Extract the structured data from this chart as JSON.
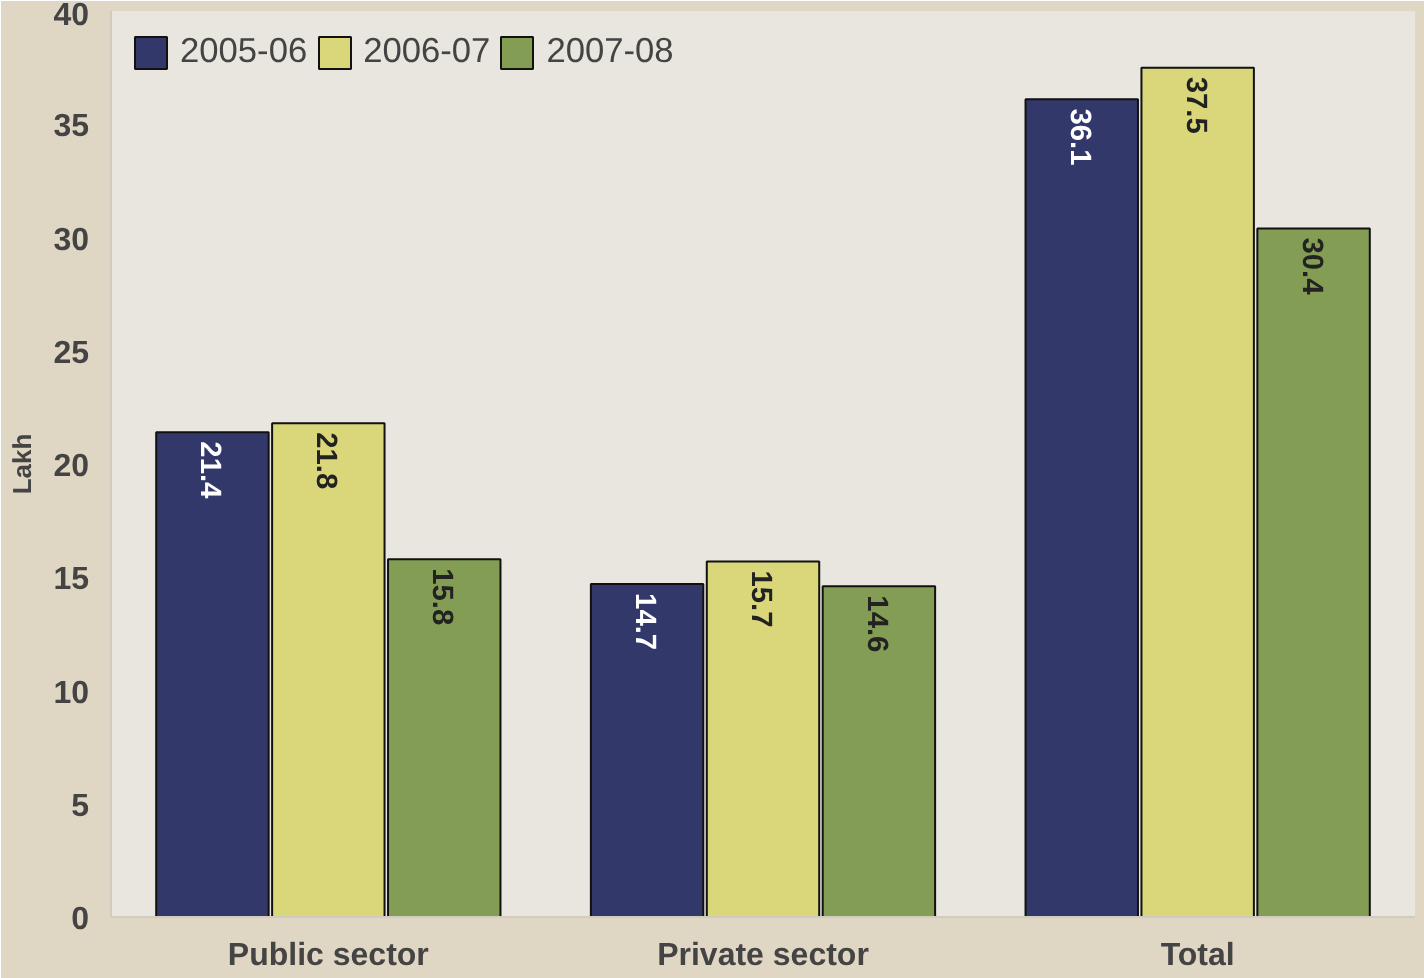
{
  "chart_data": {
    "type": "bar",
    "ylabel": "Lakh",
    "categories": [
      "Public sector",
      "Private sector",
      "Total"
    ],
    "series": [
      {
        "name": "2005-06",
        "color": "#33386b",
        "values": [
          21.4,
          14.7,
          36.1
        ]
      },
      {
        "name": "2006-07",
        "color": "#d9d77a",
        "values": [
          21.8,
          15.7,
          37.5
        ]
      },
      {
        "name": "2007-08",
        "color": "#849d55",
        "values": [
          15.8,
          14.6,
          30.4
        ]
      }
    ],
    "ylim": [
      0,
      40
    ],
    "yticks": [
      0,
      5,
      10,
      15,
      20,
      25,
      30,
      35,
      40
    ],
    "data_labels": true,
    "legend": "top left",
    "grid": false
  }
}
